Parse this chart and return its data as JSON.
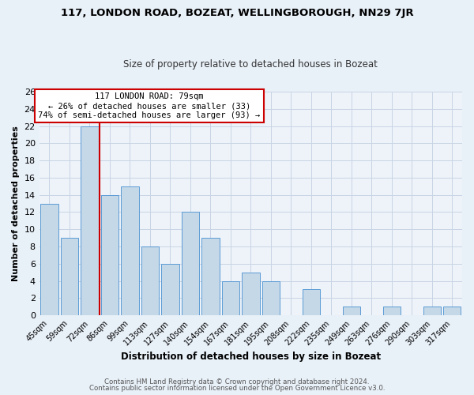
{
  "title": "117, LONDON ROAD, BOZEAT, WELLINGBOROUGH, NN29 7JR",
  "subtitle": "Size of property relative to detached houses in Bozeat",
  "xlabel": "Distribution of detached houses by size in Bozeat",
  "ylabel": "Number of detached properties",
  "bin_labels": [
    "45sqm",
    "59sqm",
    "72sqm",
    "86sqm",
    "99sqm",
    "113sqm",
    "127sqm",
    "140sqm",
    "154sqm",
    "167sqm",
    "181sqm",
    "195sqm",
    "208sqm",
    "222sqm",
    "235sqm",
    "249sqm",
    "263sqm",
    "276sqm",
    "290sqm",
    "303sqm",
    "317sqm"
  ],
  "bar_values": [
    13,
    9,
    22,
    14,
    15,
    8,
    6,
    12,
    9,
    4,
    5,
    4,
    0,
    3,
    0,
    1,
    0,
    1,
    0,
    1,
    1
  ],
  "bar_color": "#c5d8e8",
  "bar_edge_color": "#5b9bd5",
  "vline_x_index": 2.5,
  "vline_color": "#cc0000",
  "annotation_title": "117 LONDON ROAD: 79sqm",
  "annotation_line1": "← 26% of detached houses are smaller (33)",
  "annotation_line2": "74% of semi-detached houses are larger (93) →",
  "annotation_box_color": "#ffffff",
  "annotation_box_edge_color": "#cc0000",
  "ylim": [
    0,
    26
  ],
  "yticks": [
    0,
    2,
    4,
    6,
    8,
    10,
    12,
    14,
    16,
    18,
    20,
    22,
    24,
    26
  ],
  "footer_line1": "Contains HM Land Registry data © Crown copyright and database right 2024.",
  "footer_line2": "Contains public sector information licensed under the Open Government Licence v3.0.",
  "bg_color": "#e8f0f8",
  "plot_bg_color": "#eef3f9",
  "grid_color": "#c8d4e4"
}
